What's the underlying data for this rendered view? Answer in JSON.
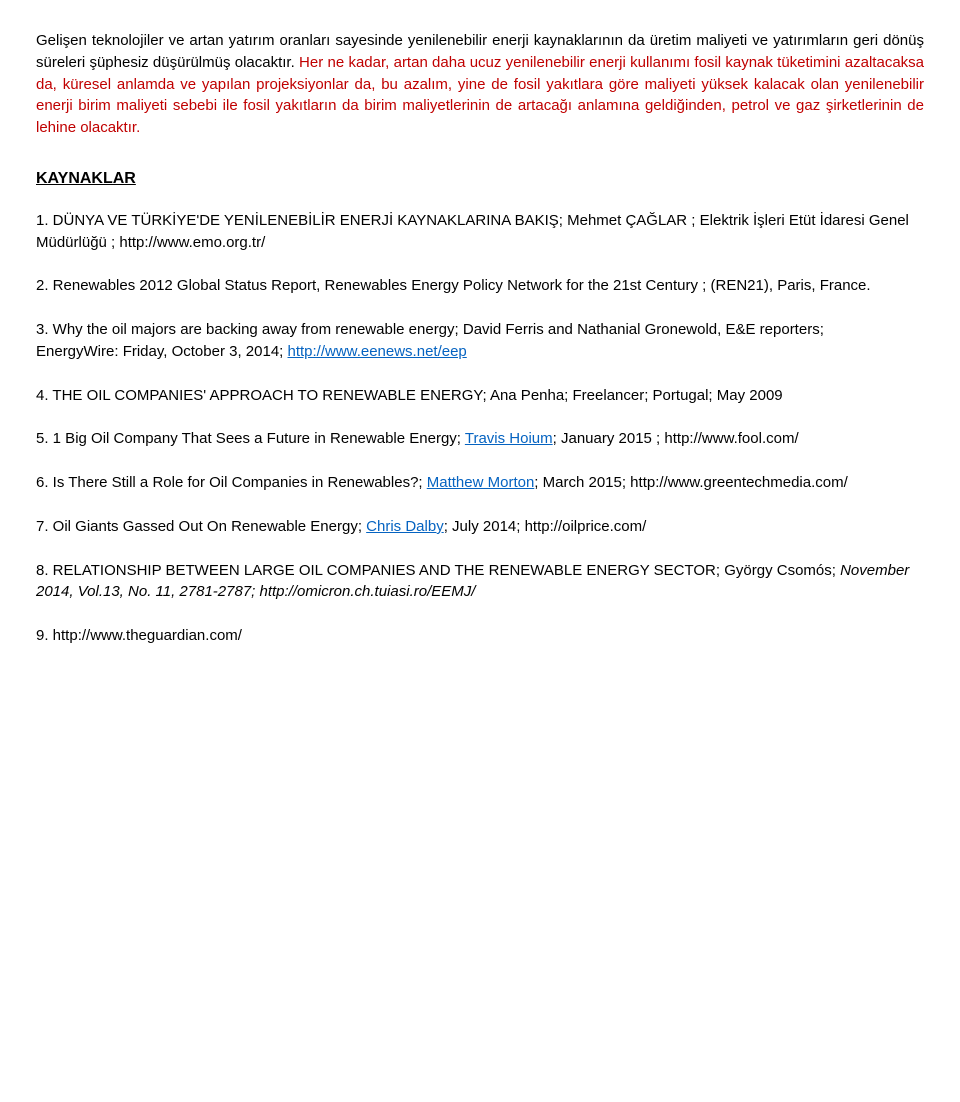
{
  "intro": {
    "p1": "Gelişen teknolojiler ve artan yatırım oranları sayesinde yenilenebilir enerji kaynaklarının da üretim maliyeti ve yatırımların geri dönüş süreleri şüphesiz düşürülmüş olacaktır.",
    "p2_red": " Her ne kadar, artan daha ucuz yenilenebilir enerji kullanımı fosil kaynak tüketimini azaltacaksa da, küresel anlamda ve yapılan projeksiyonlar da, bu azalım, yine de fosil yakıtlara göre maliyeti yüksek kalacak olan yenilenebilir enerji birim maliyeti sebebi ile fosil yakıtların da birim maliyetlerinin de artacağı anlamına geldiğinden, petrol ve gaz şirketlerinin de lehine olacaktır."
  },
  "section_title": "KAYNAKLAR",
  "refs": {
    "r1a": "1. DÜNYA VE TÜRKİYE'DE YENİLENEBİLİR ENERJİ KAYNAKLARINA BAKIŞ; Mehmet ÇAĞLAR ; Elektrik İşleri Etüt İdaresi Genel Müdürlüğü ; http://www.emo.org.tr/",
    "r2a": "2. Renewables 2012 Global Status Report, Renewables Energy Policy Network for the 21st Century ; (REN21), Paris, France.",
    "r3a": "3. Why the oil majors are backing away from renewable energy; David Ferris and Nathanial Gronewold, E&E reporters;",
    "r3b": "EnergyWire: Friday, October 3, 2014; ",
    "r3link": "http://www.eenews.net/eep",
    "r4": "4. THE OIL COMPANIES' APPROACH TO RENEWABLE ENERGY; Ana Penha; Freelancer; Portugal; May 2009",
    "r5a": "5. 1 Big Oil Company That Sees a Future in Renewable Energy; ",
    "r5link": "Travis Hoium",
    "r5b": "; January 2015 ; http://www.fool.com/",
    "r6a": "6. Is There Still a Role for Oil Companies in Renewables?; ",
    "r6link": "Matthew Morton",
    "r6b": "; March 2015; http://www.greentechmedia.com/",
    "r7a": "7. Oil Giants Gassed Out On Renewable Energy;  ",
    "r7link": "Chris Dalby",
    "r7b": "; July 2014; http://oilprice.com/",
    "r8a": "8. RELATIONSHIP BETWEEN LARGE OIL COMPANIES AND THE RENEWABLE ENERGY SECTOR; György Csomós; ",
    "r8i": "November 2014, Vol.13, No. 11, 2781-2787; http://omicron.ch.tuiasi.ro/EEMJ/",
    "r9": "9. http://www.theguardian.com/"
  }
}
